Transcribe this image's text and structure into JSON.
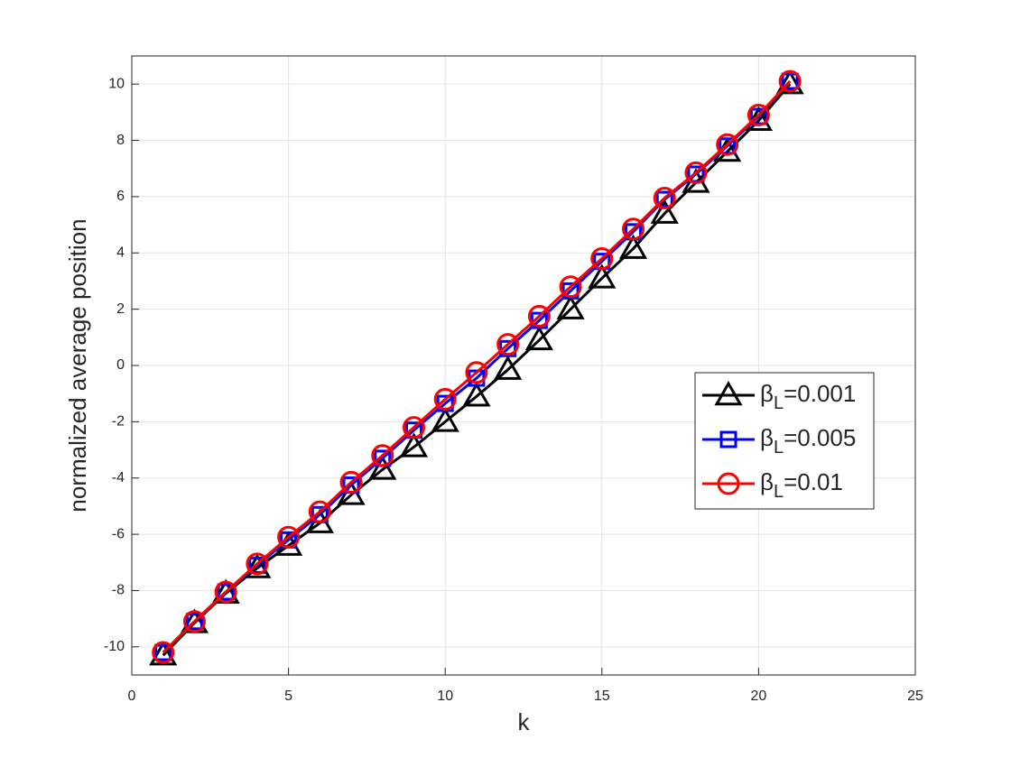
{
  "chart_data": {
    "type": "line",
    "xlabel": "k",
    "ylabel": "normalized average position",
    "x": [
      1,
      2,
      3,
      4,
      5,
      6,
      7,
      8,
      9,
      10,
      11,
      12,
      13,
      14,
      15,
      16,
      17,
      18,
      19,
      20,
      21
    ],
    "series": [
      {
        "name": "βL=0.001",
        "color": "#000000",
        "marker": "triangle",
        "values": [
          -10.3,
          -9.15,
          -8.1,
          -7.2,
          -6.4,
          -5.6,
          -4.6,
          -3.7,
          -2.9,
          -2.0,
          -1.1,
          -0.15,
          0.9,
          2.0,
          3.1,
          4.15,
          5.4,
          6.5,
          7.6,
          8.7,
          10.0
        ]
      },
      {
        "name": "βL=0.005",
        "color": "#0000ff",
        "marker": "square",
        "values": [
          -10.2,
          -9.1,
          -8.05,
          -7.1,
          -6.2,
          -5.3,
          -4.25,
          -3.3,
          -2.3,
          -1.35,
          -0.45,
          0.6,
          1.6,
          2.65,
          3.7,
          4.75,
          5.9,
          6.8,
          7.8,
          8.85,
          10.1
        ]
      },
      {
        "name": "βL=0.01",
        "color": "#ff0000",
        "marker": "circle",
        "values": [
          -10.2,
          -9.1,
          -8.05,
          -7.05,
          -6.1,
          -5.2,
          -4.15,
          -3.2,
          -2.2,
          -1.2,
          -0.25,
          0.75,
          1.75,
          2.8,
          3.8,
          4.85,
          5.95,
          6.85,
          7.85,
          8.9,
          10.1
        ]
      }
    ],
    "xlim": [
      0,
      25
    ],
    "xticks": [
      0,
      5,
      10,
      15,
      20,
      25
    ],
    "ylim": [
      -11,
      11
    ],
    "yticks": [
      -10,
      -8,
      -6,
      -4,
      -2,
      0,
      2,
      4,
      6,
      8,
      10
    ],
    "grid": true,
    "legend": "right"
  }
}
